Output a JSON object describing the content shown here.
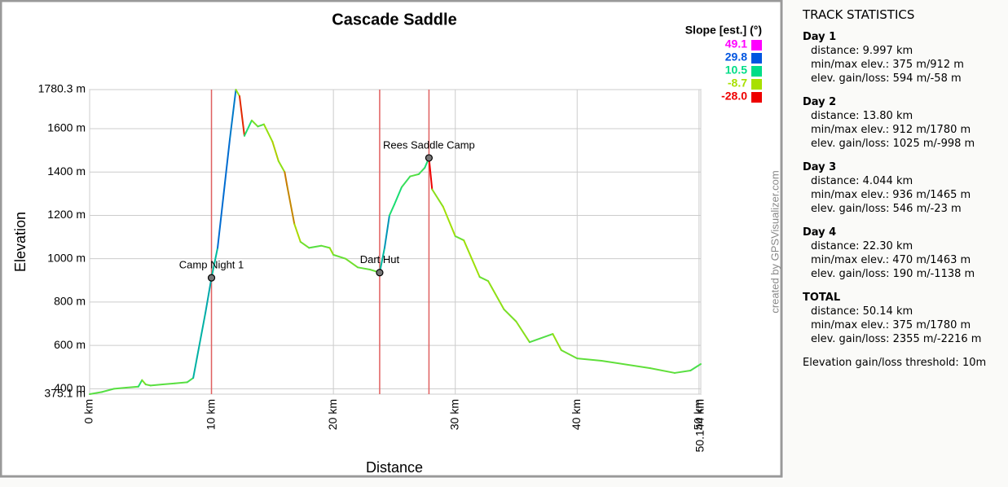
{
  "chart_data": {
    "type": "line",
    "title": "Cascade Saddle",
    "xlabel": "Distance",
    "ylabel": "Elevation",
    "xlim": [
      0,
      50.144
    ],
    "ylim": [
      375.1,
      1780.3
    ],
    "xticks": [
      {
        "value": 0,
        "label": "0 km"
      },
      {
        "value": 10,
        "label": "10 km"
      },
      {
        "value": 20,
        "label": "20 km"
      },
      {
        "value": 30,
        "label": "30 km"
      },
      {
        "value": 40,
        "label": "40 km"
      },
      {
        "value": 50,
        "label": "50 km"
      },
      {
        "value": 50.144,
        "label": "50.144 km"
      }
    ],
    "yticks": [
      {
        "value": 375.1,
        "label": "375.1 m"
      },
      {
        "value": 400,
        "label": "400 m"
      },
      {
        "value": 600,
        "label": "600 m"
      },
      {
        "value": 800,
        "label": "800 m"
      },
      {
        "value": 1000,
        "label": "1000 m"
      },
      {
        "value": 1200,
        "label": "1200 m"
      },
      {
        "value": 1400,
        "label": "1400 m"
      },
      {
        "value": 1600,
        "label": "1600 m"
      },
      {
        "value": 1780.3,
        "label": "1780.3 m"
      }
    ],
    "grid": true,
    "x": [
      0,
      1,
      2,
      3,
      4,
      4.3,
      4.6,
      5,
      6,
      7,
      8,
      8.5,
      8.8,
      9.5,
      9.997,
      10.5,
      11,
      11.5,
      12,
      12.3,
      12.7,
      13.3,
      13.8,
      14.3,
      15,
      15.5,
      16,
      16.2,
      16.8,
      17.3,
      18,
      19,
      19.7,
      20,
      21,
      22,
      23,
      23.797,
      24.2,
      24.6,
      25,
      25.6,
      26.3,
      27,
      27.5,
      27.841,
      28.1,
      29,
      30,
      30.7,
      32,
      32.7,
      34,
      35,
      36.1,
      38,
      38.7,
      40,
      42,
      46,
      48,
      49.3,
      50.144
    ],
    "series": [
      {
        "name": "Elevation",
        "values": [
          375,
          385,
          400,
          405,
          410,
          440,
          420,
          415,
          420,
          425,
          430,
          450,
          540,
          750,
          912,
          1050,
          1300,
          1550,
          1780,
          1750,
          1567,
          1638,
          1610,
          1620,
          1540,
          1450,
          1400,
          1337,
          1160,
          1078,
          1050,
          1060,
          1050,
          1018,
          1000,
          960,
          950,
          936,
          1050,
          1200,
          1250,
          1330,
          1380,
          1390,
          1420,
          1465,
          1320,
          1240,
          1104,
          1085,
          916,
          897,
          766,
          710,
          615,
          653,
          578,
          540,
          529,
          495,
          473,
          484,
          514
        ]
      }
    ],
    "legend": {
      "title": "Slope [est.] (°)",
      "stops": [
        {
          "value": 49.1,
          "color": "#ff00ff"
        },
        {
          "value": 29.8,
          "color": "#0055e0"
        },
        {
          "value": 10.5,
          "color": "#00dd88"
        },
        {
          "value": -8.7,
          "color": "#a8e000"
        },
        {
          "value": -28.0,
          "color": "#ee0000",
          "label": "-28.0"
        }
      ]
    },
    "waypoints": [
      {
        "name": "Camp Night 1",
        "x": 9.997,
        "y": 912
      },
      {
        "name": "Dart Hut",
        "x": 23.797,
        "y": 936
      },
      {
        "name": "Rees Saddle Camp",
        "x": 27.841,
        "y": 1465
      }
    ],
    "credit": "created by GPSVisualizer.com"
  },
  "stats": {
    "title": "TRACK STATISTICS",
    "sections": [
      {
        "name": "Day 1",
        "lines": [
          "distance: 9.997 km",
          "min/max elev.: 375 m/912 m",
          "elev. gain/loss: 594 m/-58 m"
        ]
      },
      {
        "name": "Day 2",
        "lines": [
          "distance: 13.80 km",
          "min/max elev.: 912 m/1780 m",
          "elev. gain/loss: 1025 m/-998 m"
        ]
      },
      {
        "name": "Day 3",
        "lines": [
          "distance: 4.044 km",
          "min/max elev.: 936 m/1465 m",
          "elev. gain/loss: 546 m/-23 m"
        ]
      },
      {
        "name": "Day 4",
        "lines": [
          "distance: 22.30 km",
          "min/max elev.: 470 m/1463 m",
          "elev. gain/loss: 190 m/-1138 m"
        ]
      },
      {
        "name": "TOTAL",
        "lines": [
          "distance: 50.14 km",
          "min/max elev.: 375 m/1780 m",
          "elev. gain/loss: 2355 m/-2216 m"
        ]
      }
    ],
    "note": "Elevation gain/loss threshold: 10m"
  }
}
